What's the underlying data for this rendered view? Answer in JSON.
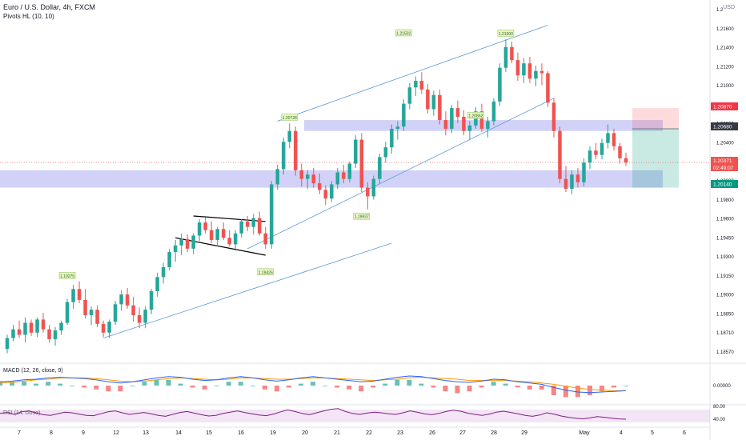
{
  "header": {
    "title": "Euro / U.S. Dollar, 4h, FXCM",
    "indicator": "Pivots HL (10, 10)",
    "currency": "USD"
  },
  "indicators": {
    "macd_label": "MACD (12, 26, close, 9)",
    "rsi_label": "RSI (14, close)"
  },
  "axes": {
    "price_ticks": [
      "1.2",
      "1.21600",
      "1.21400",
      "1.21200",
      "1.21000",
      "1.20800",
      "1.20600",
      "1.20400",
      "1.20200",
      "1.20000",
      "1.19800",
      "1.19600",
      "1.19450",
      "1.19300",
      "1.19150",
      "1.19000",
      "1.18850",
      "1.18710",
      "1.18570"
    ],
    "macd_tick": "0.00000",
    "rsi_ticks": [
      "80.00",
      "40.00"
    ],
    "dates": [
      "7",
      "8",
      "9",
      "12",
      "13",
      "14",
      "15",
      "16",
      "19",
      "20",
      "21",
      "22",
      "23",
      "26",
      "27",
      "28",
      "29",
      "May",
      "4",
      "5",
      "6"
    ]
  },
  "price_badges": {
    "red": "1.20870",
    "grey": "1.20680",
    "current": "1.20371",
    "countdown": "02:49:07",
    "green": "1.20140"
  },
  "pivot_labels": [
    "1.19275",
    "1.19426",
    "1.20728",
    "1.19937",
    "1.21502",
    "1.20862",
    "1.21500"
  ],
  "colors": {
    "up": "#26a69a",
    "down": "#ef5350",
    "zone": "#9c9cf0",
    "trendline": "#5b9bd5",
    "macd": "#2962ff",
    "signal": "#ff9800",
    "rsi": "#7e1f86"
  },
  "chart_data": {
    "type": "candlestick",
    "title": "Euro / U.S. Dollar, 4h, FXCM",
    "yrange": [
      1.185,
      1.217
    ],
    "ohlc": [
      [
        1.1866,
        1.1879,
        1.1862,
        1.1876
      ],
      [
        1.1876,
        1.1888,
        1.1873,
        1.1884
      ],
      [
        1.1884,
        1.1892,
        1.1876,
        1.1879
      ],
      [
        1.1879,
        1.1895,
        1.1872,
        1.189
      ],
      [
        1.189,
        1.1893,
        1.1878,
        1.1881
      ],
      [
        1.1881,
        1.1895,
        1.1877,
        1.1893
      ],
      [
        1.1893,
        1.1899,
        1.1881,
        1.1884
      ],
      [
        1.1884,
        1.1888,
        1.1872,
        1.1875
      ],
      [
        1.1875,
        1.1886,
        1.1869,
        1.1883
      ],
      [
        1.1883,
        1.1892,
        1.1879,
        1.189
      ],
      [
        1.189,
        1.1912,
        1.1888,
        1.1909
      ],
      [
        1.1909,
        1.1925,
        1.1903,
        1.1921
      ],
      [
        1.1921,
        1.1928,
        1.1908,
        1.1911
      ],
      [
        1.1911,
        1.1921,
        1.1894,
        1.1897
      ],
      [
        1.1897,
        1.1905,
        1.1888,
        1.1902
      ],
      [
        1.1902,
        1.1906,
        1.1886,
        1.1889
      ],
      [
        1.1889,
        1.1892,
        1.1877,
        1.1881
      ],
      [
        1.1881,
        1.1893,
        1.1876,
        1.1891
      ],
      [
        1.1891,
        1.191,
        1.1888,
        1.1907
      ],
      [
        1.1907,
        1.192,
        1.1901,
        1.1916
      ],
      [
        1.1916,
        1.1922,
        1.1903,
        1.1906
      ],
      [
        1.1906,
        1.1914,
        1.1891,
        1.1897
      ],
      [
        1.1897,
        1.1904,
        1.1885,
        1.189
      ],
      [
        1.189,
        1.1905,
        1.1885,
        1.1902
      ],
      [
        1.1902,
        1.1921,
        1.1898,
        1.1919
      ],
      [
        1.1919,
        1.1936,
        1.1914,
        1.1932
      ],
      [
        1.1932,
        1.1945,
        1.1926,
        1.1941
      ],
      [
        1.1941,
        1.1958,
        1.1938,
        1.1955
      ],
      [
        1.1955,
        1.1966,
        1.1946,
        1.1961
      ],
      [
        1.1961,
        1.1972,
        1.1952,
        1.1967
      ],
      [
        1.1967,
        1.1971,
        1.1955,
        1.1958
      ],
      [
        1.1958,
        1.1972,
        1.1953,
        1.197
      ],
      [
        1.197,
        1.1985,
        1.1965,
        1.1982
      ],
      [
        1.1982,
        1.1987,
        1.1972,
        1.1975
      ],
      [
        1.1975,
        1.1983,
        1.1963,
        1.1966
      ],
      [
        1.1966,
        1.1978,
        1.196,
        1.1976
      ],
      [
        1.1976,
        1.1982,
        1.1966,
        1.1968
      ],
      [
        1.1968,
        1.1975,
        1.196,
        1.1962
      ],
      [
        1.1962,
        1.1975,
        1.1958,
        1.1972
      ],
      [
        1.1972,
        1.1985,
        1.1968,
        1.1983
      ],
      [
        1.1983,
        1.1988,
        1.1974,
        1.1978
      ],
      [
        1.1978,
        1.199,
        1.1971,
        1.1986
      ],
      [
        1.1986,
        1.1992,
        1.197,
        1.1972
      ],
      [
        1.1972,
        1.1978,
        1.1958,
        1.1962
      ],
      [
        1.1962,
        1.202,
        1.1958,
        1.2017
      ],
      [
        1.2017,
        1.2035,
        1.2012,
        1.2031
      ],
      [
        1.2031,
        1.206,
        1.2026,
        1.2056
      ],
      [
        1.2056,
        1.2073,
        1.205,
        1.2066
      ],
      [
        1.2066,
        1.207,
        1.2025,
        1.203
      ],
      [
        1.203,
        1.2036,
        1.2015,
        1.2022
      ],
      [
        1.2022,
        1.203,
        1.2013,
        1.2026
      ],
      [
        1.2026,
        1.2032,
        1.2014,
        1.2018
      ],
      [
        1.2018,
        1.2027,
        1.2008,
        1.2012
      ],
      [
        1.2012,
        1.2016,
        1.1998,
        1.2004
      ],
      [
        1.2004,
        1.202,
        1.2001,
        1.2017
      ],
      [
        1.2017,
        1.2032,
        1.2013,
        1.2028
      ],
      [
        1.2028,
        1.2035,
        1.2018,
        1.2022
      ],
      [
        1.2022,
        1.2038,
        1.2019,
        1.2036
      ],
      [
        1.2036,
        1.2062,
        1.2032,
        1.2058
      ],
      [
        1.2058,
        1.2064,
        1.201,
        1.2014
      ],
      [
        1.2014,
        1.2019,
        1.1994,
        1.2006
      ],
      [
        1.2006,
        1.2025,
        1.2003,
        1.2022
      ],
      [
        1.2022,
        1.2045,
        1.2018,
        1.2042
      ],
      [
        1.2042,
        1.2056,
        1.2037,
        1.2051
      ],
      [
        1.2051,
        1.2072,
        1.2045,
        1.2068
      ],
      [
        1.2068,
        1.2075,
        1.2058,
        1.207
      ],
      [
        1.207,
        1.2095,
        1.2066,
        1.2091
      ],
      [
        1.2091,
        1.211,
        1.2086,
        1.2106
      ],
      [
        1.2106,
        1.2116,
        1.2098,
        1.2112
      ],
      [
        1.2112,
        1.212,
        1.21,
        1.2104
      ],
      [
        1.2104,
        1.2109,
        1.2082,
        1.2086
      ],
      [
        1.2086,
        1.2103,
        1.208,
        1.2099
      ],
      [
        1.2099,
        1.2104,
        1.2072,
        1.2076
      ],
      [
        1.2076,
        1.2084,
        1.2062,
        1.2068
      ],
      [
        1.2068,
        1.209,
        1.2064,
        1.2087
      ],
      [
        1.2087,
        1.2094,
        1.2073,
        1.2079
      ],
      [
        1.2079,
        1.2085,
        1.2062,
        1.2066
      ],
      [
        1.2066,
        1.2075,
        1.2058,
        1.2071
      ],
      [
        1.2071,
        1.2088,
        1.2068,
        1.2084
      ],
      [
        1.2084,
        1.2091,
        1.2065,
        1.2068
      ],
      [
        1.2068,
        1.2079,
        1.206,
        1.2075
      ],
      [
        1.2075,
        1.2096,
        1.2071,
        1.2093
      ],
      [
        1.2093,
        1.2128,
        1.2089,
        1.2124
      ],
      [
        1.2124,
        1.215,
        1.212,
        1.2143
      ],
      [
        1.2143,
        1.2148,
        1.2128,
        1.2131
      ],
      [
        1.2131,
        1.2138,
        1.2112,
        1.2117
      ],
      [
        1.2117,
        1.2133,
        1.211,
        1.2128
      ],
      [
        1.2128,
        1.2134,
        1.211,
        1.2114
      ],
      [
        1.2114,
        1.2126,
        1.2107,
        1.2121
      ],
      [
        1.2121,
        1.2128,
        1.2108,
        1.2119
      ],
      [
        1.2119,
        1.2121,
        1.2088,
        1.2092
      ],
      [
        1.2092,
        1.2096,
        1.206,
        1.2066
      ],
      [
        1.2066,
        1.207,
        1.2018,
        1.2022
      ],
      [
        1.2022,
        1.2034,
        1.201,
        1.2013
      ],
      [
        1.2013,
        1.203,
        1.2008,
        1.2026
      ],
      [
        1.2026,
        1.2032,
        1.2014,
        1.2019
      ],
      [
        1.2019,
        1.2041,
        1.2015,
        1.2037
      ],
      [
        1.2037,
        1.2052,
        1.2031,
        1.2048
      ],
      [
        1.2048,
        1.2055,
        1.204,
        1.2044
      ],
      [
        1.2044,
        1.2059,
        1.204,
        1.2055
      ],
      [
        1.2055,
        1.2072,
        1.205,
        1.2064
      ],
      [
        1.2064,
        1.2068,
        1.2048,
        1.2052
      ],
      [
        1.2052,
        1.2055,
        1.2036,
        1.2041
      ],
      [
        1.2041,
        1.2046,
        1.2034,
        1.2037
      ]
    ],
    "zones": [
      {
        "from": 1.2066,
        "to": 1.2076
      },
      {
        "from": 1.2014,
        "to": 1.203
      }
    ],
    "trade": {
      "entry": 1.2068,
      "stop": 1.2087,
      "target": 1.2014
    },
    "macd": [
      [
        0.0006,
        0.0004
      ],
      [
        0.0007,
        0.0005
      ],
      [
        0.0009,
        0.0007
      ],
      [
        0.001,
        0.0009
      ],
      [
        0.0012,
        0.001
      ],
      [
        0.0013,
        0.0012
      ],
      [
        0.0012,
        0.0012
      ],
      [
        0.0011,
        0.0012
      ],
      [
        0.0009,
        0.0011
      ],
      [
        0.0006,
        0.0009
      ],
      [
        0.0004,
        0.0007
      ],
      [
        0.0006,
        0.0006
      ],
      [
        0.0009,
        0.0007
      ],
      [
        0.0012,
        0.0009
      ],
      [
        0.0014,
        0.0011
      ],
      [
        0.0013,
        0.0012
      ],
      [
        0.001,
        0.0011
      ],
      [
        0.0008,
        0.001
      ],
      [
        0.0009,
        0.0009
      ],
      [
        0.0012,
        0.001
      ],
      [
        0.0014,
        0.0012
      ],
      [
        0.0012,
        0.0012
      ],
      [
        0.0009,
        0.0011
      ],
      [
        0.0007,
        0.001
      ],
      [
        0.0009,
        0.001
      ],
      [
        0.0012,
        0.0011
      ],
      [
        0.0014,
        0.0012
      ],
      [
        0.0012,
        0.0012
      ],
      [
        0.001,
        0.0011
      ],
      [
        0.0008,
        0.001
      ],
      [
        0.0006,
        0.0009
      ],
      [
        0.0007,
        0.0008
      ],
      [
        0.001,
        0.0009
      ],
      [
        0.0013,
        0.001
      ],
      [
        0.0015,
        0.0012
      ],
      [
        0.0014,
        0.0013
      ],
      [
        0.0011,
        0.0012
      ],
      [
        0.0008,
        0.0011
      ],
      [
        0.0006,
        0.001
      ],
      [
        0.0005,
        0.0008
      ],
      [
        0.0007,
        0.0008
      ],
      [
        0.001,
        0.0008
      ],
      [
        0.0009,
        0.0008
      ],
      [
        0.0006,
        0.0007
      ],
      [
        0.0004,
        0.0006
      ],
      [
        0.0002,
        0.0004
      ],
      [
        -0.0003,
        0.0002
      ],
      [
        -0.0007,
        -0.0001
      ],
      [
        -0.001,
        -0.0004
      ],
      [
        -0.0011,
        -0.0006
      ],
      [
        -0.001,
        -0.0007
      ],
      [
        -0.0009,
        -0.0008
      ],
      [
        -0.0008,
        -0.0008
      ]
    ],
    "rsi": [
      58,
      61,
      55,
      63,
      66,
      60,
      54,
      52,
      57,
      62,
      60,
      56,
      52,
      51,
      57,
      63,
      66,
      60,
      55,
      58,
      61,
      57,
      52,
      49,
      55,
      61,
      64,
      59,
      54,
      50,
      52,
      58,
      62,
      66,
      61,
      57,
      53,
      51,
      56,
      63,
      69,
      64,
      58,
      54,
      60,
      66,
      71,
      73,
      64,
      58,
      55,
      59,
      62,
      60,
      57,
      55,
      60,
      66,
      62,
      57,
      54,
      58,
      64,
      68,
      65,
      59,
      55,
      52,
      56,
      62,
      65,
      61,
      57,
      52,
      49,
      53,
      60,
      56,
      50,
      46,
      43,
      41,
      44,
      48,
      46,
      43,
      41,
      40
    ]
  }
}
